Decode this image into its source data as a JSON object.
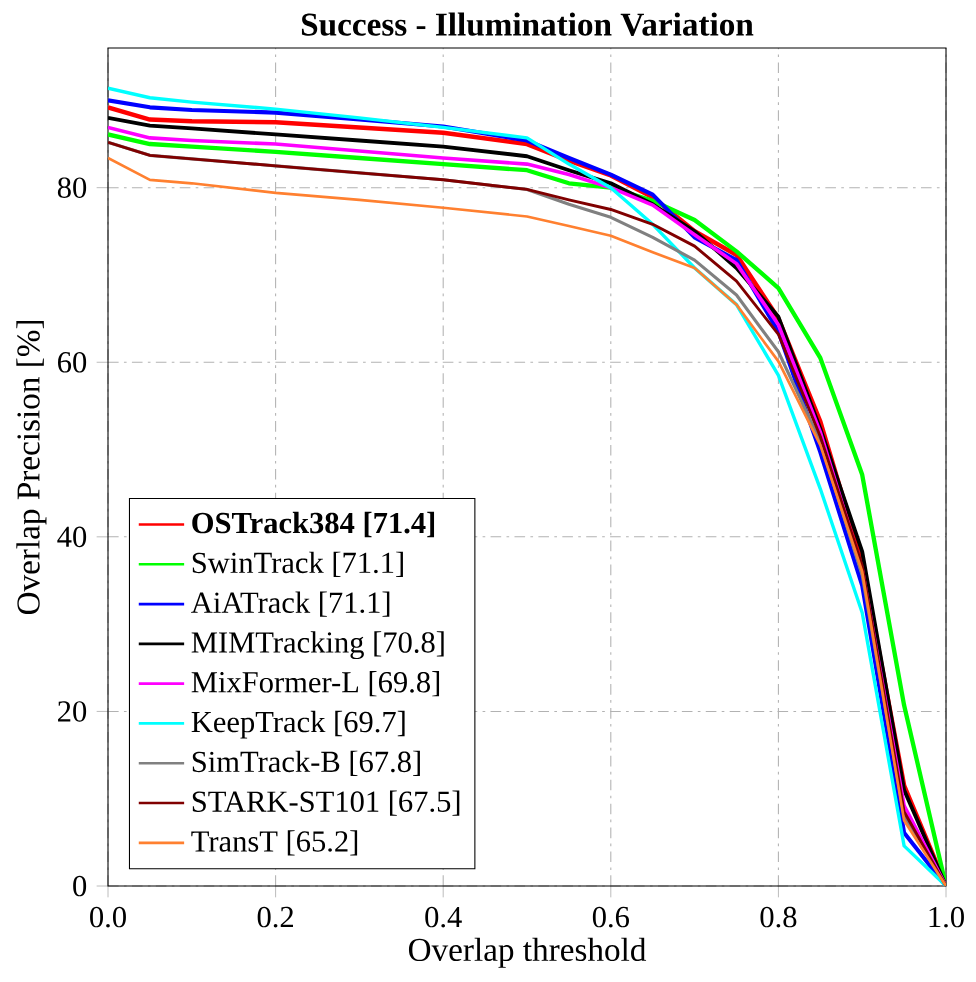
{
  "chart_data": {
    "type": "line",
    "title": "Success - Illumination Variation",
    "xlabel": "Overlap threshold",
    "ylabel": "Overlap Precision [%]",
    "x": [
      0,
      0.05,
      0.1,
      0.2,
      0.3,
      0.4,
      0.5,
      0.55,
      0.6,
      0.65,
      0.7,
      0.75,
      0.8,
      0.85,
      0.9,
      0.95,
      1.0
    ],
    "series": [
      {
        "name": "**OSTrack384 [71.4]**",
        "color": "#ff0000",
        "values": [
          89.2,
          87.8,
          87.6,
          87.5,
          86.9,
          86.3,
          85.0,
          83.1,
          81.4,
          78.9,
          75.0,
          72.3,
          65.0,
          53.2,
          37.1,
          11.5,
          0
        ]
      },
      {
        "name": "SwinTrack [71.1]",
        "color": "#00ff00",
        "values": [
          86.1,
          85.0,
          84.7,
          84.1,
          83.4,
          82.7,
          82.0,
          80.5,
          80.0,
          78.5,
          76.3,
          72.7,
          68.5,
          60.5,
          47.1,
          20.7,
          0
        ]
      },
      {
        "name": "AiATrack [71.1]",
        "color": "#0000ff",
        "values": [
          90.0,
          89.2,
          88.9,
          88.6,
          87.8,
          87.0,
          85.4,
          83.4,
          81.5,
          79.2,
          74.3,
          71.7,
          63.5,
          49.7,
          34.4,
          6.1,
          0
        ]
      },
      {
        "name": "MIMTracking [70.8]",
        "color": "#000000",
        "values": [
          88.0,
          87.1,
          86.8,
          86.1,
          85.4,
          84.7,
          83.6,
          82.0,
          80.5,
          78.1,
          75.0,
          70.8,
          65.2,
          52.4,
          38.3,
          11.0,
          0
        ]
      },
      {
        "name": "MixFormer-L [69.8]",
        "color": "#ff00ff",
        "values": [
          86.9,
          85.7,
          85.4,
          85.0,
          84.2,
          83.4,
          82.7,
          81.5,
          80.0,
          78.0,
          74.6,
          71.3,
          64.3,
          52.0,
          36.3,
          9.2,
          0
        ]
      },
      {
        "name": "KeepTrack [69.7]",
        "color": "#00ffff",
        "values": [
          91.4,
          90.3,
          89.8,
          89.0,
          88.0,
          86.9,
          85.7,
          82.7,
          80.0,
          75.8,
          70.8,
          66.6,
          58.5,
          45.5,
          31.3,
          4.6,
          0
        ]
      },
      {
        "name": "SimTrack-B [67.8]",
        "color": "#808080",
        "values": [
          85.2,
          83.7,
          83.3,
          82.5,
          81.7,
          80.9,
          79.8,
          78.1,
          76.6,
          74.3,
          71.7,
          67.7,
          61.2,
          50.9,
          35.6,
          8.0,
          0
        ]
      },
      {
        "name": "STARK-ST101 [67.5]",
        "color": "#800000",
        "values": [
          85.2,
          83.7,
          83.3,
          82.5,
          81.7,
          80.9,
          79.8,
          78.6,
          77.5,
          75.8,
          73.3,
          69.3,
          63.2,
          51.5,
          36.7,
          8.5,
          0
        ]
      },
      {
        "name": "TransT [65.2]",
        "color": "#ff8030",
        "values": [
          83.4,
          80.9,
          80.5,
          79.4,
          78.6,
          77.7,
          76.7,
          75.6,
          74.5,
          72.6,
          70.8,
          66.6,
          60.1,
          50.5,
          36.0,
          7.5,
          0
        ]
      }
    ],
    "xlim": [
      0,
      1
    ],
    "ylim": [
      0,
      96
    ],
    "xticks": [
      {
        "value": 0,
        "label": "0.0"
      },
      {
        "value": 0.2,
        "label": "0.2"
      },
      {
        "value": 0.4,
        "label": "0.4"
      },
      {
        "value": 0.6,
        "label": "0.6"
      },
      {
        "value": 0.8,
        "label": "0.8"
      },
      {
        "value": 1.0,
        "label": "1.0"
      }
    ],
    "yticks": [
      0,
      20,
      40,
      60,
      80
    ],
    "grid": true,
    "legend": "bottom left",
    "marker": "none",
    "line_style": "solid"
  }
}
